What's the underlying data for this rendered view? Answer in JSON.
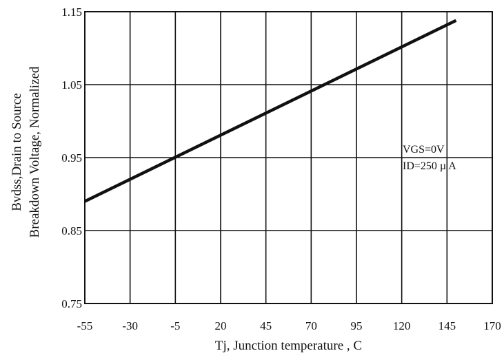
{
  "chart_data": {
    "type": "line",
    "xlabel": "Tj, Junction temperature , C",
    "ylabel_lines": [
      "Bvdss,Drain to Source",
      "Breakdown Voltage, Normalized"
    ],
    "x_ticks": [
      "-55",
      "-30",
      "-5",
      "20",
      "45",
      "70",
      "95",
      "120",
      "145",
      "170"
    ],
    "y_ticks": [
      "0.75",
      "0.85",
      "0.95",
      "1.05",
      "1.15"
    ],
    "xlim": [
      -55,
      170
    ],
    "ylim": [
      0.75,
      1.15
    ],
    "grid": true,
    "series": [
      {
        "x": [
          -55,
          150
        ],
        "y": [
          0.89,
          1.138
        ],
        "color": "#111111"
      }
    ],
    "annotations": [
      "VGS=0V",
      "ID=250 µ A"
    ]
  }
}
